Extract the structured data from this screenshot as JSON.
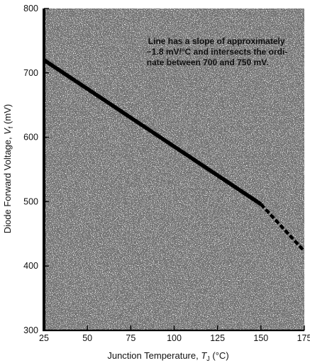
{
  "chart_data": {
    "type": "line",
    "title": "",
    "xlabel": "Junction Temperature, T J (°C)",
    "xlabel_main": "Junction Temperature, ",
    "xlabel_var": "T",
    "xlabel_sub": "J",
    "xlabel_unit": " (°C)",
    "ylabel": "Diode Forward Voltage, Vf (mV)",
    "ylabel_main": "Diode Forward Voltage, ",
    "ylabel_var": "V",
    "ylabel_sub": "f",
    "ylabel_unit": " (mV)",
    "xlim": [
      25,
      175
    ],
    "ylim": [
      300,
      800
    ],
    "x_ticks": [
      25,
      50,
      75,
      100,
      125,
      150,
      175
    ],
    "y_ticks": [
      300,
      400,
      500,
      600,
      700,
      800
    ],
    "x_tick_labels": [
      "25",
      "50",
      "75",
      "100",
      "125",
      "150",
      "175"
    ],
    "y_tick_labels": [
      "300",
      "400",
      "500",
      "600",
      "700",
      "800"
    ],
    "grid": false,
    "series": [
      {
        "x": [
          25,
          150
        ],
        "y": [
          720,
          496
        ],
        "style": "solid",
        "color": "#000000"
      },
      {
        "x": [
          150,
          175
        ],
        "y": [
          496,
          423
        ],
        "style": "dashed",
        "color": "#000000"
      }
    ],
    "annotation": {
      "lines": [
        "Line has a slope of approximately",
        "−1.8 mV/°C and intersects the ordi-",
        "nate between 700 and 750 mV."
      ],
      "x": 85,
      "y": 745
    }
  }
}
